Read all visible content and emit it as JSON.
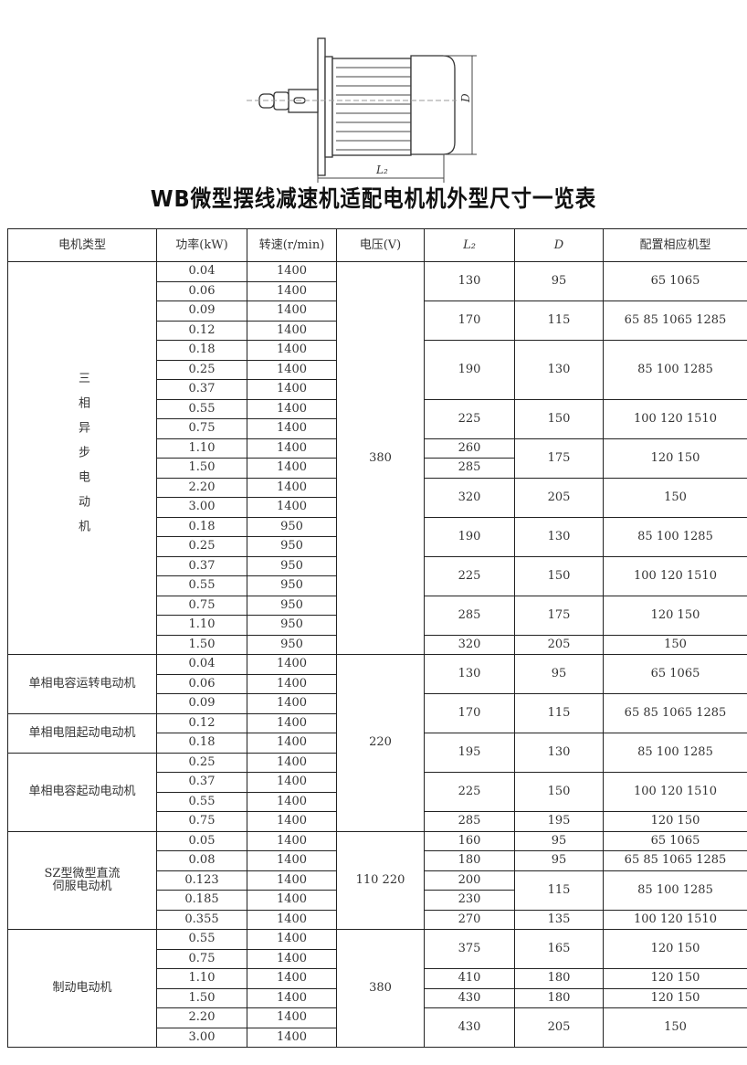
{
  "drawing": {
    "label_D": "D",
    "label_L2": "L₂"
  },
  "title": "WB微型摆线减速机适配电机机外型尺寸一览表",
  "table": {
    "headers": [
      "电机类型",
      "功率(kW)",
      "转速(r/min)",
      "电压(V)",
      "L₂",
      "D",
      "配置相应机型"
    ],
    "rows": [
      [
        {
          "t": "三相异步电动机",
          "rs": 20,
          "v": 1
        },
        {
          "t": "0.04"
        },
        {
          "t": "1400"
        },
        {
          "t": "380",
          "rs": 20
        },
        {
          "t": "130",
          "rs": 2
        },
        {
          "t": "95",
          "rs": 2
        },
        {
          "t": "65 1065",
          "rs": 2
        }
      ],
      [
        {
          "t": "0.06"
        },
        {
          "t": "1400"
        }
      ],
      [
        {
          "t": "0.09"
        },
        {
          "t": "1400"
        },
        {
          "t": "170",
          "rs": 2
        },
        {
          "t": "115",
          "rs": 2
        },
        {
          "t": "65 85 1065 1285",
          "rs": 2
        }
      ],
      [
        {
          "t": "0.12"
        },
        {
          "t": "1400"
        }
      ],
      [
        {
          "t": "0.18"
        },
        {
          "t": "1400"
        },
        {
          "t": "190",
          "rs": 3
        },
        {
          "t": "130",
          "rs": 3
        },
        {
          "t": "85 100 1285",
          "rs": 3
        }
      ],
      [
        {
          "t": "0.25"
        },
        {
          "t": "1400"
        }
      ],
      [
        {
          "t": "0.37"
        },
        {
          "t": "1400"
        }
      ],
      [
        {
          "t": "0.55"
        },
        {
          "t": "1400"
        },
        {
          "t": "225",
          "rs": 2
        },
        {
          "t": "150",
          "rs": 2
        },
        {
          "t": "100 120 1510",
          "rs": 2
        }
      ],
      [
        {
          "t": "0.75"
        },
        {
          "t": "1400"
        }
      ],
      [
        {
          "t": "1.10"
        },
        {
          "t": "1400"
        },
        {
          "t": "260"
        },
        {
          "t": "175",
          "rs": 2
        },
        {
          "t": "120 150",
          "rs": 2
        }
      ],
      [
        {
          "t": "1.50"
        },
        {
          "t": "1400"
        },
        {
          "t": "285"
        }
      ],
      [
        {
          "t": "2.20"
        },
        {
          "t": "1400"
        },
        {
          "t": "320",
          "rs": 2
        },
        {
          "t": "205",
          "rs": 2
        },
        {
          "t": "150",
          "rs": 2
        }
      ],
      [
        {
          "t": "3.00"
        },
        {
          "t": "1400"
        }
      ],
      [
        {
          "t": "0.18"
        },
        {
          "t": "950"
        },
        {
          "t": "190",
          "rs": 2
        },
        {
          "t": "130",
          "rs": 2
        },
        {
          "t": "85 100 1285",
          "rs": 2
        }
      ],
      [
        {
          "t": "0.25"
        },
        {
          "t": "950"
        }
      ],
      [
        {
          "t": "0.37"
        },
        {
          "t": "950"
        },
        {
          "t": "225",
          "rs": 2
        },
        {
          "t": "150",
          "rs": 2
        },
        {
          "t": "100 120 1510",
          "rs": 2
        }
      ],
      [
        {
          "t": "0.55"
        },
        {
          "t": "950"
        }
      ],
      [
        {
          "t": "0.75"
        },
        {
          "t": "950"
        },
        {
          "t": "285",
          "rs": 2
        },
        {
          "t": "175",
          "rs": 2
        },
        {
          "t": "120 150",
          "rs": 2
        }
      ],
      [
        {
          "t": "1.10"
        },
        {
          "t": "950"
        }
      ],
      [
        {
          "t": "1.50"
        },
        {
          "t": "950"
        },
        {
          "t": "320"
        },
        {
          "t": "205"
        },
        {
          "t": "150"
        }
      ],
      [
        {
          "t": "单相电容运转电动机",
          "rs": 3
        },
        {
          "t": "0.04"
        },
        {
          "t": "1400"
        },
        {
          "t": "220",
          "rs": 9
        },
        {
          "t": "130",
          "rs": 2
        },
        {
          "t": "95",
          "rs": 2
        },
        {
          "t": "65 1065",
          "rs": 2
        }
      ],
      [
        {
          "t": "0.06"
        },
        {
          "t": "1400"
        }
      ],
      [
        {
          "t": "0.09"
        },
        {
          "t": "1400"
        },
        {
          "t": "170",
          "rs": 2
        },
        {
          "t": "115",
          "rs": 2
        },
        {
          "t": "65 85 1065 1285",
          "rs": 2
        }
      ],
      [
        {
          "t": "单相电阻起动电动机",
          "rs": 2
        },
        {
          "t": "0.12"
        },
        {
          "t": "1400"
        }
      ],
      [
        {
          "t": "0.18"
        },
        {
          "t": "1400"
        },
        {
          "t": "195",
          "rs": 2
        },
        {
          "t": "130",
          "rs": 2
        },
        {
          "t": "85 100 1285",
          "rs": 2
        }
      ],
      [
        {
          "t": "单相电容起动电动机",
          "rs": 4
        },
        {
          "t": "0.25"
        },
        {
          "t": "1400"
        }
      ],
      [
        {
          "t": "0.37"
        },
        {
          "t": "1400"
        },
        {
          "t": "225",
          "rs": 2
        },
        {
          "t": "150",
          "rs": 2
        },
        {
          "t": "100 120 1510",
          "rs": 2
        }
      ],
      [
        {
          "t": "0.55"
        },
        {
          "t": "1400"
        }
      ],
      [
        {
          "t": "0.75"
        },
        {
          "t": "1400"
        },
        {
          "t": "285"
        },
        {
          "t": "195"
        },
        {
          "t": "120 150"
        }
      ],
      [
        {
          "t": "SZ型微型直流\n伺服电动机",
          "rs": 5
        },
        {
          "t": "0.05"
        },
        {
          "t": "1400"
        },
        {
          "t": "110 220",
          "rs": 5
        },
        {
          "t": "160"
        },
        {
          "t": "95"
        },
        {
          "t": "65 1065"
        }
      ],
      [
        {
          "t": "0.08"
        },
        {
          "t": "1400"
        },
        {
          "t": "180"
        },
        {
          "t": "95"
        },
        {
          "t": "65 85 1065 1285"
        }
      ],
      [
        {
          "t": "0.123"
        },
        {
          "t": "1400"
        },
        {
          "t": "200"
        },
        {
          "t": "115",
          "rs": 2
        },
        {
          "t": "85 100 1285",
          "rs": 2
        }
      ],
      [
        {
          "t": "0.185"
        },
        {
          "t": "1400"
        },
        {
          "t": "230"
        }
      ],
      [
        {
          "t": "0.355"
        },
        {
          "t": "1400"
        },
        {
          "t": "270"
        },
        {
          "t": "135"
        },
        {
          "t": "100 120 1510"
        }
      ],
      [
        {
          "t": "制动电动机",
          "rs": 6
        },
        {
          "t": "0.55"
        },
        {
          "t": "1400"
        },
        {
          "t": "380",
          "rs": 6
        },
        {
          "t": "375",
          "rs": 2
        },
        {
          "t": "165",
          "rs": 2
        },
        {
          "t": "120 150",
          "rs": 2
        }
      ],
      [
        {
          "t": "0.75"
        },
        {
          "t": "1400"
        }
      ],
      [
        {
          "t": "1.10"
        },
        {
          "t": "1400"
        },
        {
          "t": "410"
        },
        {
          "t": "180"
        },
        {
          "t": "120 150"
        }
      ],
      [
        {
          "t": "1.50"
        },
        {
          "t": "1400"
        },
        {
          "t": "430"
        },
        {
          "t": "180"
        },
        {
          "t": "120 150"
        }
      ],
      [
        {
          "t": "2.20"
        },
        {
          "t": "1400"
        },
        {
          "t": "430",
          "rs": 2
        },
        {
          "t": "205",
          "rs": 2
        },
        {
          "t": "150",
          "rs": 2
        }
      ],
      [
        {
          "t": "3.00"
        },
        {
          "t": "1400"
        }
      ]
    ]
  }
}
